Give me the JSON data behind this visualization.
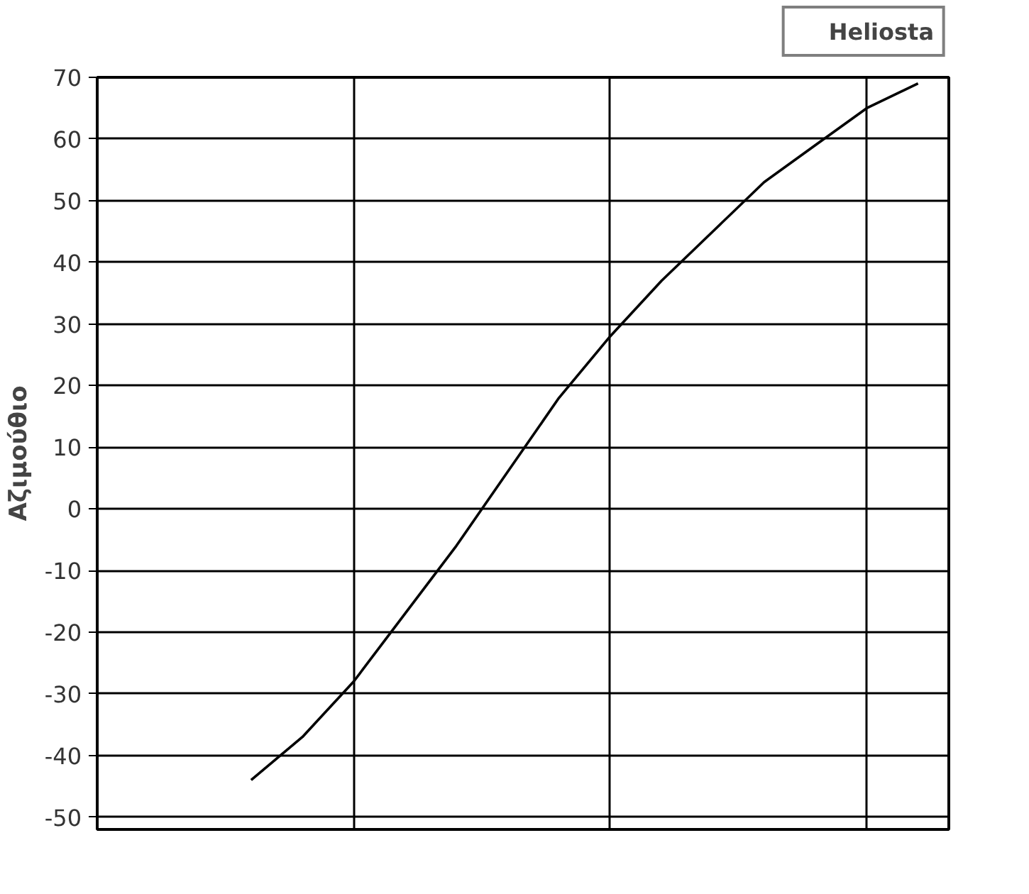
{
  "chart_data": {
    "type": "line",
    "ylabel": "Αζιμούθιο",
    "categories": [
      null,
      null,
      null,
      null,
      null,
      null,
      null,
      null,
      null,
      null,
      null,
      null,
      null,
      null,
      null,
      null,
      null
    ],
    "series": [
      {
        "name": "Heliosta",
        "color": "#000000",
        "values": [
          null,
          null,
          null,
          -44,
          -37,
          -28,
          -17,
          -6,
          6,
          18,
          28,
          37,
          45,
          53,
          59,
          65,
          69
        ]
      }
    ],
    "ylim": [
      -52,
      70
    ],
    "yticks": [
      -50,
      -40,
      -30,
      -20,
      -10,
      0,
      10,
      20,
      30,
      40,
      50,
      60,
      70
    ],
    "tick_labels": "y",
    "grid": true,
    "legend": "top right",
    "marker": "none",
    "line_style": "solid"
  }
}
